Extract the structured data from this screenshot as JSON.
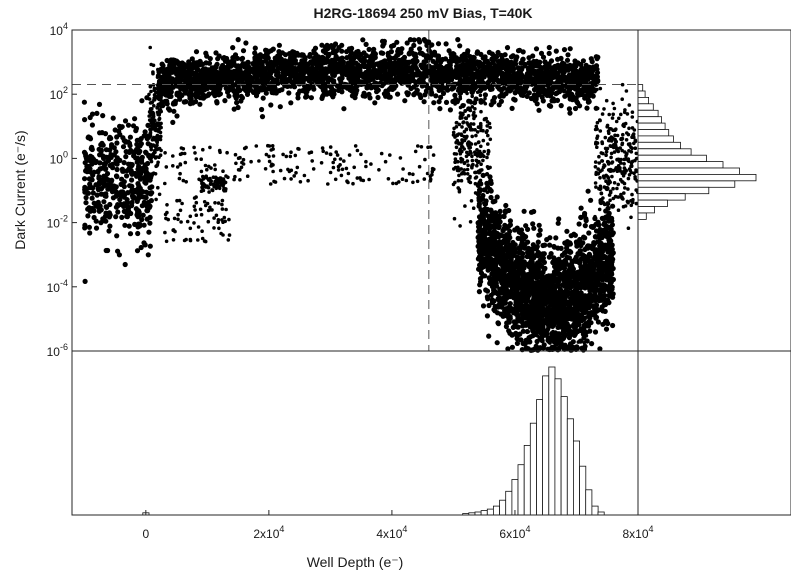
{
  "chart_data": {
    "type": "scatter",
    "title": "H2RG-18694 250 mV Bias, T=40K",
    "xlabel": "Well Depth (e⁻)",
    "ylabel": "Dark Current (e⁻/s)",
    "xlim": [
      -12000,
      80000
    ],
    "ylim": [
      1e-06,
      10000.0
    ],
    "yscale": "log",
    "grid": false,
    "x_ticks": [
      {
        "value": 0,
        "base": "0",
        "exp": ""
      },
      {
        "value": 20000,
        "base": "2x10",
        "exp": "4"
      },
      {
        "value": 40000,
        "base": "4x10",
        "exp": "4"
      },
      {
        "value": 60000,
        "base": "6x10",
        "exp": "4"
      },
      {
        "value": 80000,
        "base": "8x10",
        "exp": "4"
      }
    ],
    "y_ticks": [
      {
        "value": 1e-06,
        "base": "10",
        "exp": "-6"
      },
      {
        "value": 0.0001,
        "base": "10",
        "exp": "-4"
      },
      {
        "value": 0.01,
        "base": "10",
        "exp": "-2"
      },
      {
        "value": 1,
        "base": "10",
        "exp": "0"
      },
      {
        "value": 100,
        "base": "10",
        "exp": "2"
      },
      {
        "value": 10000,
        "base": "10",
        "exp": "4"
      }
    ],
    "reference_lines": [
      {
        "orientation": "horizontal",
        "value": 200
      },
      {
        "orientation": "vertical",
        "value": 46000
      }
    ],
    "clusters": [
      {
        "x_range": [
          -10000,
          1000
        ],
        "log_y_center": -0.7,
        "log_y_spread": 0.9,
        "n": 420
      },
      {
        "x_range": [
          500,
          2500
        ],
        "log_y_center": 1.0,
        "log_y_spread": 0.8,
        "n": 160
      },
      {
        "x_range": [
          2000,
          73500
        ],
        "log_y_center": 2.5,
        "log_y_spread": 0.38,
        "n": 2600,
        "shape": "plateau"
      },
      {
        "x_range": [
          50000,
          56000
        ],
        "log_y_center": 0.4,
        "log_y_spread": 1.0,
        "n": 240
      },
      {
        "x_range": [
          54000,
          76000
        ],
        "log_y_center": -2.6,
        "log_y_spread": 0.9,
        "n": 2100,
        "shape": "u-trough"
      },
      {
        "x_range": [
          60000,
          72000
        ],
        "log_y_center": -4.7,
        "log_y_spread": 0.45,
        "n": 260
      },
      {
        "x_range": [
          73000,
          80000
        ],
        "log_y_center": 0.0,
        "log_y_spread": 0.8,
        "n": 260
      },
      {
        "x_range": [
          3000,
          47000
        ],
        "log_y_center": -0.2,
        "log_y_spread": 0.6,
        "n": 170,
        "shape": "sparse"
      },
      {
        "x_range": [
          3000,
          14000
        ],
        "log_y_center": -1.9,
        "log_y_spread": 0.7,
        "n": 70,
        "shape": "sparse"
      },
      {
        "x_range": [
          9000,
          13000
        ],
        "log_y_center": -0.8,
        "log_y_spread": 0.25,
        "n": 70,
        "shape": "sparse"
      }
    ],
    "x_histogram": {
      "bin_centers": [
        0,
        52000,
        53000,
        54000,
        55000,
        56000,
        57000,
        58000,
        59000,
        60000,
        61000,
        62000,
        63000,
        64000,
        65000,
        66000,
        67000,
        68000,
        69000,
        70000,
        71000,
        72000,
        73000,
        74000
      ],
      "counts": [
        0.015,
        0.01,
        0.015,
        0.02,
        0.03,
        0.04,
        0.06,
        0.1,
        0.16,
        0.24,
        0.34,
        0.47,
        0.62,
        0.78,
        0.94,
        1.0,
        0.92,
        0.8,
        0.65,
        0.5,
        0.33,
        0.17,
        0.06,
        0.02
      ]
    },
    "y_histogram": {
      "log_bin_centers": [
        2.2,
        2.0,
        1.8,
        1.6,
        1.4,
        1.2,
        1.0,
        0.8,
        0.6,
        0.4,
        0.2,
        0.0,
        -0.2,
        -0.4,
        -0.6,
        -0.8,
        -1.0,
        -1.2,
        -1.4,
        -1.6,
        -1.8
      ],
      "counts": [
        0.04,
        0.06,
        0.09,
        0.13,
        0.17,
        0.2,
        0.23,
        0.26,
        0.3,
        0.36,
        0.45,
        0.58,
        0.72,
        0.86,
        1.0,
        0.82,
        0.6,
        0.4,
        0.25,
        0.14,
        0.07
      ]
    }
  }
}
